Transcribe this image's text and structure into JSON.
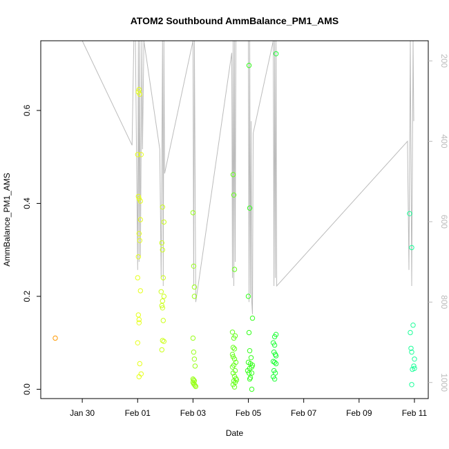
{
  "chart_data": {
    "type": "scatter",
    "title": "ATOM2 Southbound AmmBalance_PM1_AMS",
    "xlabel": "Date",
    "ylabel": "AmmBalance_PM1_AMS",
    "x_unit": "days from Jan 28",
    "xlim": [
      0,
      28.0
    ],
    "ylim": [
      -0.02,
      0.75
    ],
    "x_ticks": [
      {
        "value": 3,
        "label": "Jan 30"
      },
      {
        "value": 7,
        "label": "Feb 01"
      },
      {
        "value": 11,
        "label": "Feb 03"
      },
      {
        "value": 15,
        "label": "Feb 05"
      },
      {
        "value": 19,
        "label": "Feb 07"
      },
      {
        "value": 23,
        "label": "Feb 09"
      },
      {
        "value": 27,
        "label": "Feb 11"
      }
    ],
    "y_ticks": [
      {
        "value": 0.0,
        "label": "0.0"
      },
      {
        "value": 0.2,
        "label": "0.2"
      },
      {
        "value": 0.4,
        "label": "0.4"
      },
      {
        "value": 0.6,
        "label": "0.6"
      }
    ],
    "right_axis": {
      "lim": [
        1040,
        150
      ],
      "ticks": [
        {
          "value": 200,
          "label": "200"
        },
        {
          "value": 400,
          "label": "400"
        },
        {
          "value": 600,
          "label": "600"
        },
        {
          "value": 800,
          "label": "800"
        },
        {
          "value": 1000,
          "label": "1000"
        }
      ],
      "color": "#bbbbbb"
    },
    "series": [
      {
        "color": "#ff9900",
        "points": [
          [
            1.05,
            0.11
          ]
        ]
      },
      {
        "color": "#e6ff1a",
        "points": [
          [
            7.0,
            0.505
          ],
          [
            7.05,
            0.64
          ],
          [
            7.1,
            0.645
          ],
          [
            7.15,
            0.635
          ],
          [
            7.05,
            0.415
          ],
          [
            7.1,
            0.41
          ],
          [
            7.2,
            0.405
          ],
          [
            7.25,
            0.505
          ],
          [
            7.2,
            0.365
          ],
          [
            7.1,
            0.335
          ],
          [
            7.15,
            0.32
          ],
          [
            7.05,
            0.285
          ],
          [
            7.0,
            0.24
          ],
          [
            7.2,
            0.212
          ],
          [
            7.05,
            0.16
          ],
          [
            7.1,
            0.15
          ],
          [
            7.1,
            0.143
          ],
          [
            7.0,
            0.1
          ],
          [
            7.15,
            0.055
          ],
          [
            7.25,
            0.033
          ],
          [
            7.1,
            0.027
          ]
        ]
      },
      {
        "color": "#ccff1a",
        "points": [
          [
            8.8,
            0.392
          ],
          [
            8.9,
            0.36
          ],
          [
            8.75,
            0.315
          ],
          [
            8.8,
            0.3
          ],
          [
            8.85,
            0.24
          ],
          [
            8.7,
            0.21
          ],
          [
            8.8,
            0.19
          ],
          [
            8.9,
            0.2
          ],
          [
            8.75,
            0.18
          ],
          [
            8.8,
            0.175
          ],
          [
            8.85,
            0.148
          ],
          [
            8.9,
            0.103
          ],
          [
            8.8,
            0.105
          ],
          [
            8.75,
            0.085
          ]
        ]
      },
      {
        "color": "#99ff1a",
        "points": [
          [
            11.0,
            0.38
          ],
          [
            11.05,
            0.265
          ],
          [
            11.1,
            0.22
          ],
          [
            11.1,
            0.2
          ],
          [
            11.0,
            0.11
          ],
          [
            11.05,
            0.08
          ],
          [
            11.1,
            0.065
          ],
          [
            11.15,
            0.05
          ],
          [
            11.0,
            0.022
          ],
          [
            11.05,
            0.02
          ],
          [
            11.1,
            0.018
          ],
          [
            11.0,
            0.015
          ],
          [
            11.05,
            0.012
          ],
          [
            11.1,
            0.01
          ],
          [
            11.15,
            0.008
          ],
          [
            11.2,
            0.006
          ]
        ]
      },
      {
        "color": "#66ff1a",
        "points": [
          [
            13.9,
            0.462
          ],
          [
            13.95,
            0.418
          ],
          [
            14.0,
            0.258
          ],
          [
            13.85,
            0.123
          ],
          [
            13.95,
            0.11
          ],
          [
            14.05,
            0.115
          ],
          [
            13.9,
            0.09
          ],
          [
            14.0,
            0.087
          ],
          [
            13.85,
            0.075
          ],
          [
            13.9,
            0.07
          ],
          [
            14.0,
            0.065
          ],
          [
            14.1,
            0.058
          ],
          [
            13.95,
            0.052
          ],
          [
            13.85,
            0.048
          ],
          [
            14.05,
            0.04
          ],
          [
            13.9,
            0.035
          ],
          [
            14.0,
            0.028
          ],
          [
            14.1,
            0.023
          ],
          [
            13.95,
            0.018
          ],
          [
            14.05,
            0.015
          ],
          [
            13.9,
            0.01
          ],
          [
            14.0,
            0.005
          ],
          [
            14.15,
            0.02
          ]
        ]
      },
      {
        "color": "#33ff1a",
        "points": [
          [
            15.05,
            0.697
          ],
          [
            15.1,
            0.39
          ],
          [
            15.0,
            0.2
          ],
          [
            15.3,
            0.153
          ],
          [
            15.05,
            0.122
          ],
          [
            15.1,
            0.083
          ],
          [
            15.2,
            0.068
          ],
          [
            15.0,
            0.058
          ],
          [
            15.15,
            0.055
          ],
          [
            15.3,
            0.052
          ],
          [
            15.25,
            0.048
          ],
          [
            15.1,
            0.045
          ],
          [
            14.95,
            0.04
          ],
          [
            15.05,
            0.035
          ],
          [
            15.25,
            0.035
          ],
          [
            15.15,
            0.025
          ],
          [
            15.1,
            0.022
          ],
          [
            15.25,
            0.0
          ]
        ]
      },
      {
        "color": "#1aff33",
        "points": [
          [
            17.0,
            0.722
          ],
          [
            17.0,
            0.118
          ],
          [
            16.9,
            0.113
          ],
          [
            16.8,
            0.1
          ],
          [
            16.9,
            0.095
          ],
          [
            16.85,
            0.08
          ],
          [
            16.95,
            0.075
          ],
          [
            17.0,
            0.072
          ],
          [
            16.8,
            0.06
          ],
          [
            16.9,
            0.058
          ],
          [
            17.0,
            0.055
          ],
          [
            16.85,
            0.04
          ],
          [
            16.95,
            0.035
          ],
          [
            16.8,
            0.027
          ],
          [
            16.9,
            0.022
          ]
        ]
      },
      {
        "color": "#1aff99",
        "points": [
          [
            26.65,
            0.378
          ],
          [
            26.8,
            0.305
          ],
          [
            26.9,
            0.138
          ],
          [
            26.7,
            0.122
          ],
          [
            26.75,
            0.088
          ],
          [
            26.8,
            0.08
          ],
          [
            27.0,
            0.065
          ],
          [
            26.95,
            0.05
          ],
          [
            27.0,
            0.045
          ],
          [
            26.85,
            0.043
          ],
          [
            26.8,
            0.01
          ]
        ]
      }
    ],
    "overlay_line": {
      "color": "#bbbbbb",
      "axis": "right",
      "points": [
        [
          3.0,
          150
        ],
        [
          6.6,
          410
        ],
        [
          6.8,
          1
        ],
        [
          7.0,
          720
        ],
        [
          7.05,
          150
        ],
        [
          7.1,
          700
        ],
        [
          7.15,
          150
        ],
        [
          7.2,
          690
        ],
        [
          7.3,
          150
        ],
        [
          7.35,
          420
        ],
        [
          7.45,
          150
        ],
        [
          8.6,
          420
        ],
        [
          8.7,
          740
        ],
        [
          8.8,
          150
        ],
        [
          8.85,
          760
        ],
        [
          8.9,
          150
        ],
        [
          8.95,
          480
        ],
        [
          11.0,
          150
        ],
        [
          11.05,
          760
        ],
        [
          11.1,
          150
        ],
        [
          11.2,
          800
        ],
        [
          13.8,
          180
        ],
        [
          13.85,
          740
        ],
        [
          13.9,
          150
        ],
        [
          13.95,
          760
        ],
        [
          14.0,
          150
        ],
        [
          14.05,
          700
        ],
        [
          14.1,
          150
        ],
        [
          14.2,
          150
        ],
        [
          15.0,
          150
        ],
        [
          15.05,
          800
        ],
        [
          15.1,
          150
        ],
        [
          15.15,
          780
        ],
        [
          15.2,
          350
        ],
        [
          15.25,
          800
        ],
        [
          15.3,
          830
        ],
        [
          15.35,
          380
        ],
        [
          16.8,
          150
        ],
        [
          16.85,
          760
        ],
        [
          16.9,
          150
        ],
        [
          16.95,
          740
        ],
        [
          17.0,
          150
        ],
        [
          17.05,
          760
        ],
        [
          26.5,
          400
        ],
        [
          26.6,
          720
        ],
        [
          26.7,
          150
        ],
        [
          26.8,
          760
        ],
        [
          26.9,
          150
        ],
        [
          26.95,
          350
        ]
      ]
    }
  }
}
